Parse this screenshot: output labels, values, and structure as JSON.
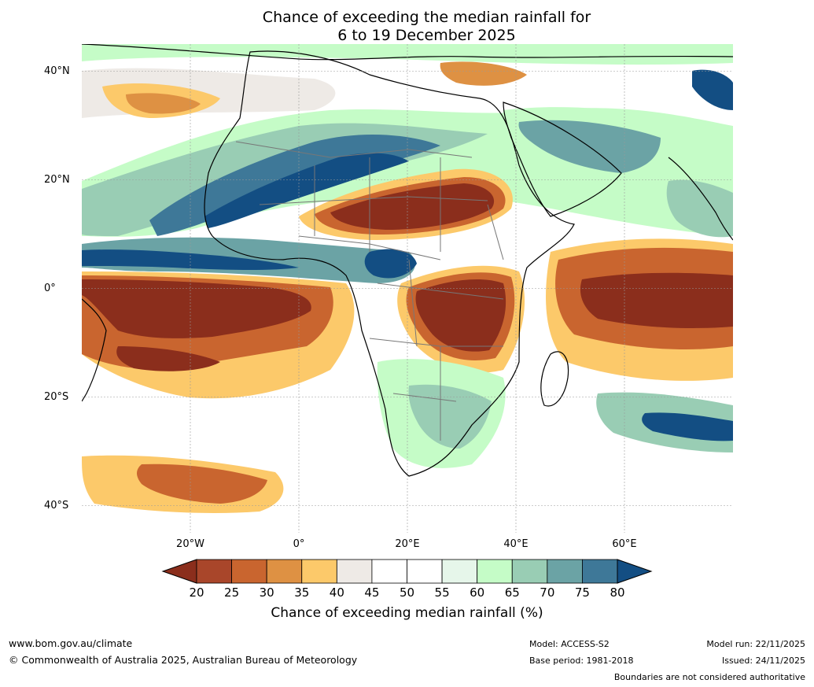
{
  "title": {
    "line1": "Chance of exceeding the median rainfall for",
    "line2": "6 to 19 December 2025"
  },
  "axes": {
    "lat_labels": [
      "40°N",
      "20°N",
      "0°",
      "20°S",
      "40°S"
    ],
    "lon_labels": [
      "20°W",
      "0°",
      "20°E",
      "40°E",
      "60°E"
    ],
    "lat_values": [
      40,
      20,
      0,
      -20,
      -40
    ],
    "lon_values": [
      -20,
      0,
      20,
      40,
      60
    ],
    "lat_range": [
      -45,
      45
    ],
    "lon_range": [
      -40,
      80
    ]
  },
  "colorbar": {
    "label": "Chance of exceeding median rainfall (%)",
    "ticks": [
      "20",
      "25",
      "30",
      "35",
      "40",
      "45",
      "50",
      "55",
      "60",
      "65",
      "70",
      "75",
      "80"
    ],
    "colors": [
      "#8b2e1c",
      "#a9462a",
      "#c9652f",
      "#de9143",
      "#fcc96a",
      "#eeeae6",
      "#ffffff",
      "#ffffff",
      "#e6f6ea",
      "#c5fcc7",
      "#99cdb4",
      "#6ba3a5",
      "#3e7898",
      "#134e83"
    ],
    "below_color": "#8b2e1c",
    "above_color": "#134e83"
  },
  "footer": {
    "url": "www.bom.gov.au/climate",
    "copyright": "© Commonwealth of Australia 2025, Australian Bureau of Meteorology",
    "model": "Model: ACCESS-S2",
    "base_period": "Base period: 1981-2018",
    "model_run": "Model run: 22/11/2025",
    "issued": "Issued: 24/11/2025",
    "disclaimer": "Boundaries are not considered authoritative"
  }
}
